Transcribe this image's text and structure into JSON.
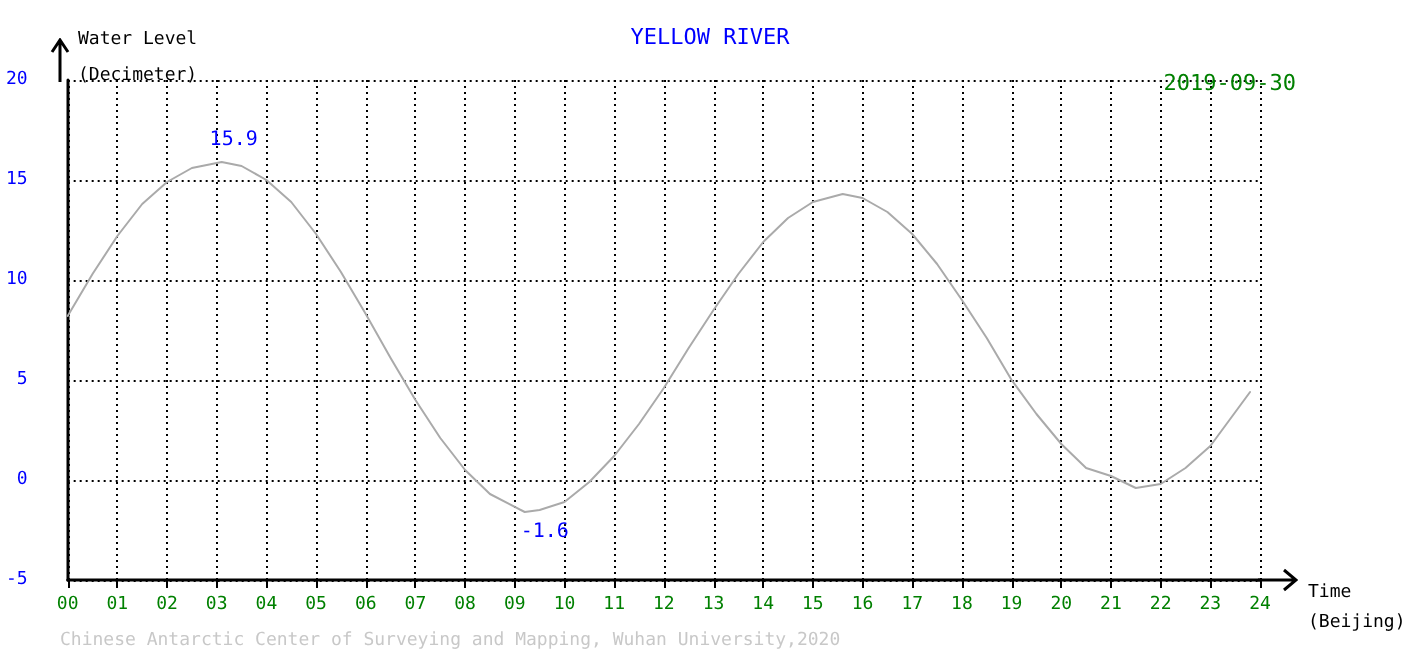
{
  "chart_data": {
    "type": "line",
    "title": "YELLOW RIVER",
    "subtitle": "2019-09-30",
    "xlabel": "Time (Beijing)",
    "ylabel": "Water Level (Decimeter)",
    "annotations": [
      {
        "text": "15.9",
        "x": 3.1,
        "y": 15.9
      },
      {
        "text": "-1.6",
        "x": 9.2,
        "y": -1.6
      },
      "Chinese Antarctic Center of Surveying and Mapping, Wuhan University,2020"
    ],
    "x": [
      0,
      0.5,
      1,
      1.5,
      2,
      2.5,
      3.1,
      3.5,
      4,
      4.5,
      5,
      5.5,
      6,
      6.5,
      7,
      7.5,
      8,
      8.5,
      9.2,
      9.5,
      10,
      10.5,
      11,
      11.5,
      12,
      12.5,
      13,
      13.5,
      14,
      14.5,
      15,
      15.6,
      16,
      16.5,
      17,
      17.5,
      18,
      18.5,
      19,
      19.5,
      20,
      20.5,
      21,
      21.5,
      22,
      22.5,
      23,
      23.8
    ],
    "series": [
      {
        "color": "#aaaaaa",
        "values": [
          8.2,
          10.3,
          12.2,
          13.8,
          14.9,
          15.6,
          15.9,
          15.7,
          15.0,
          13.9,
          12.3,
          10.4,
          8.3,
          6.1,
          4.0,
          2.1,
          0.5,
          -0.7,
          -1.6,
          -1.5,
          -1.1,
          -0.1,
          1.2,
          2.8,
          4.6,
          6.6,
          8.5,
          10.3,
          11.9,
          13.1,
          13.9,
          14.3,
          14.1,
          13.4,
          12.3,
          10.8,
          9.0,
          7.1,
          5.0,
          3.3,
          1.8,
          0.6,
          0.2,
          -0.4,
          -0.2,
          0.6,
          1.7,
          4.4
        ]
      }
    ],
    "xlim": [
      0,
      24
    ],
    "ylim": [
      -5,
      20
    ],
    "xticks": [
      {
        "value": 0,
        "label": "00"
      },
      {
        "value": 1,
        "label": "01"
      },
      {
        "value": 2,
        "label": "02"
      },
      {
        "value": 3,
        "label": "03"
      },
      {
        "value": 4,
        "label": "04"
      },
      {
        "value": 5,
        "label": "05"
      },
      {
        "value": 6,
        "label": "06"
      },
      {
        "value": 7,
        "label": "07"
      },
      {
        "value": 8,
        "label": "08"
      },
      {
        "value": 9,
        "label": "09"
      },
      {
        "value": 10,
        "label": "10"
      },
      {
        "value": 11,
        "label": "11"
      },
      {
        "value": 12,
        "label": "12"
      },
      {
        "value": 13,
        "label": "13"
      },
      {
        "value": 14,
        "label": "14"
      },
      {
        "value": 15,
        "label": "15"
      },
      {
        "value": 16,
        "label": "16"
      },
      {
        "value": 17,
        "label": "17"
      },
      {
        "value": 18,
        "label": "18"
      },
      {
        "value": 19,
        "label": "19"
      },
      {
        "value": 20,
        "label": "20"
      },
      {
        "value": 21,
        "label": "21"
      },
      {
        "value": 22,
        "label": "22"
      },
      {
        "value": 23,
        "label": "23"
      },
      {
        "value": 24,
        "label": "24"
      }
    ],
    "yticks": [
      -5,
      0,
      5,
      10,
      15,
      20
    ],
    "grid": true,
    "marker": "none",
    "line_style": "solid"
  }
}
